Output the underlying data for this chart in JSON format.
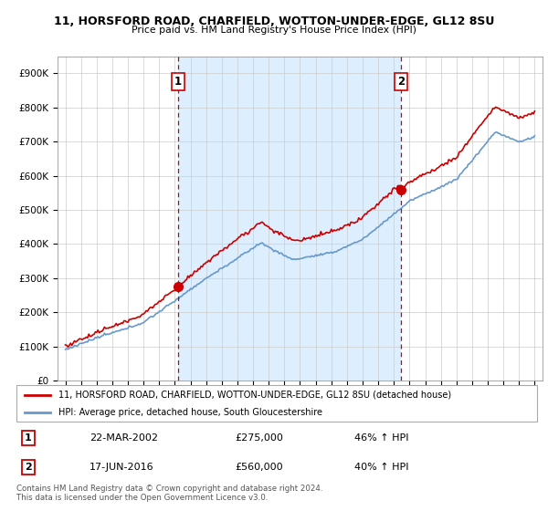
{
  "title1": "11, HORSFORD ROAD, CHARFIELD, WOTTON-UNDER-EDGE, GL12 8SU",
  "title2": "Price paid vs. HM Land Registry's House Price Index (HPI)",
  "legend_line1": "11, HORSFORD ROAD, CHARFIELD, WOTTON-UNDER-EDGE, GL12 8SU (detached house)",
  "legend_line2": "HPI: Average price, detached house, South Gloucestershire",
  "footer": "Contains HM Land Registry data © Crown copyright and database right 2024.\nThis data is licensed under the Open Government Licence v3.0.",
  "sale1_date": "22-MAR-2002",
  "sale1_price": 275000,
  "sale1_hpi": "46% ↑ HPI",
  "sale1_x": 2002.22,
  "sale2_date": "17-JUN-2016",
  "sale2_price": 560000,
  "sale2_hpi": "40% ↑ HPI",
  "sale2_x": 2016.46,
  "hpi_color": "#6699cc",
  "price_color": "#cc0000",
  "vline_color": "#cc0000",
  "marker_color": "#cc0000",
  "fill_color": "#ddeeff",
  "ylim": [
    0,
    950000
  ],
  "yticks": [
    0,
    100000,
    200000,
    300000,
    400000,
    500000,
    600000,
    700000,
    800000,
    900000
  ],
  "ytick_labels": [
    "£0",
    "£100K",
    "£200K",
    "£300K",
    "£400K",
    "£500K",
    "£600K",
    "£700K",
    "£800K",
    "£900K"
  ],
  "xlim": [
    1994.5,
    2025.5
  ],
  "xticks": [
    1995,
    1996,
    1997,
    1998,
    1999,
    2000,
    2001,
    2002,
    2003,
    2004,
    2005,
    2006,
    2007,
    2008,
    2009,
    2010,
    2011,
    2012,
    2013,
    2014,
    2015,
    2016,
    2017,
    2018,
    2019,
    2020,
    2021,
    2022,
    2023,
    2024,
    2025
  ]
}
